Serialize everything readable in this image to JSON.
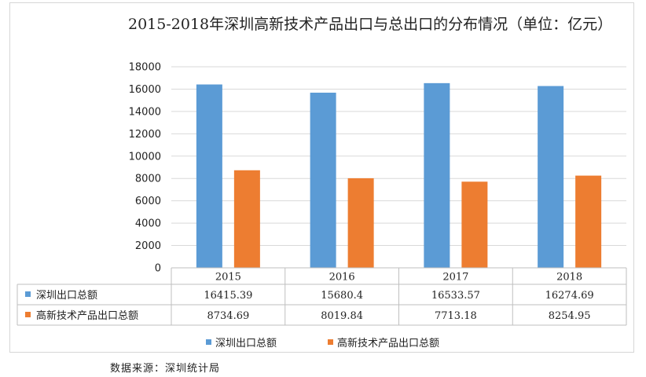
{
  "chart_data": {
    "type": "bar",
    "title": "2015-2018年深圳高新技术产品出口与总出口的分布情况（单位：亿元）",
    "categories": [
      "2015",
      "2016",
      "2017",
      "2018"
    ],
    "series": [
      {
        "name": "深圳出口总额",
        "color": "#5b9bd5",
        "values": [
          16415.39,
          15680.4,
          16533.57,
          16274.69
        ],
        "display": [
          "16415.39",
          "15680.4",
          "16533.57",
          "16274.69"
        ]
      },
      {
        "name": "高新技术产品出口总额",
        "color": "#ed7d31",
        "values": [
          8734.69,
          8019.84,
          7713.18,
          8254.95
        ],
        "display": [
          "8734.69",
          "8019.84",
          "7713.18",
          "8254.95"
        ]
      }
    ],
    "yticks": [
      "0",
      "2000",
      "4000",
      "6000",
      "8000",
      "10000",
      "12000",
      "14000",
      "16000",
      "18000"
    ],
    "ylim": [
      0,
      18000
    ],
    "grid": true,
    "legend_position": "bottom",
    "data_table": true
  },
  "source": "数据来源：深圳统计局"
}
